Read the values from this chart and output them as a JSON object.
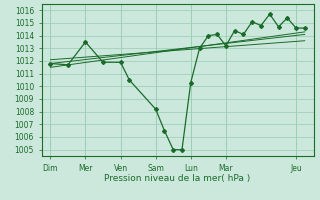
{
  "xlabel": "Pression niveau de la mer( hPa )",
  "background_color": "#cce8dc",
  "grid_color": "#99ccb3",
  "line_color": "#1a6b2a",
  "ylim": [
    1004.5,
    1016.5
  ],
  "day_labels": [
    "Dim",
    "Mer",
    "Ven",
    "Sam",
    "Lun",
    "Mar",
    "Jeu"
  ],
  "day_positions": [
    0,
    2,
    4,
    6,
    8,
    10,
    14
  ],
  "series1": {
    "x": [
      0,
      1,
      2,
      3,
      4,
      4.5,
      6,
      6.5,
      7,
      7.5,
      8,
      8.5,
      9,
      9.5,
      10,
      10.5,
      11,
      11.5,
      12,
      12.5,
      13,
      13.5,
      14,
      14.5
    ],
    "y": [
      1011.8,
      1011.7,
      1013.5,
      1011.9,
      1011.9,
      1010.5,
      1008.2,
      1006.5,
      1005.0,
      1005.0,
      1010.3,
      1013.0,
      1014.0,
      1014.1,
      1013.2,
      1014.4,
      1014.1,
      1015.1,
      1014.8,
      1015.7,
      1014.7,
      1015.4,
      1014.6,
      1014.6
    ]
  },
  "series2_linear": {
    "x": [
      0,
      14.5
    ],
    "y": [
      1011.8,
      1014.1
    ]
  },
  "series3_linear": {
    "x": [
      0,
      14.5
    ],
    "y": [
      1012.1,
      1013.6
    ]
  },
  "series4_linear": {
    "x": [
      0,
      14.5
    ],
    "y": [
      1011.5,
      1014.3
    ]
  },
  "ytick_start": 1005,
  "ytick_end": 1016,
  "ytick_step": 1
}
